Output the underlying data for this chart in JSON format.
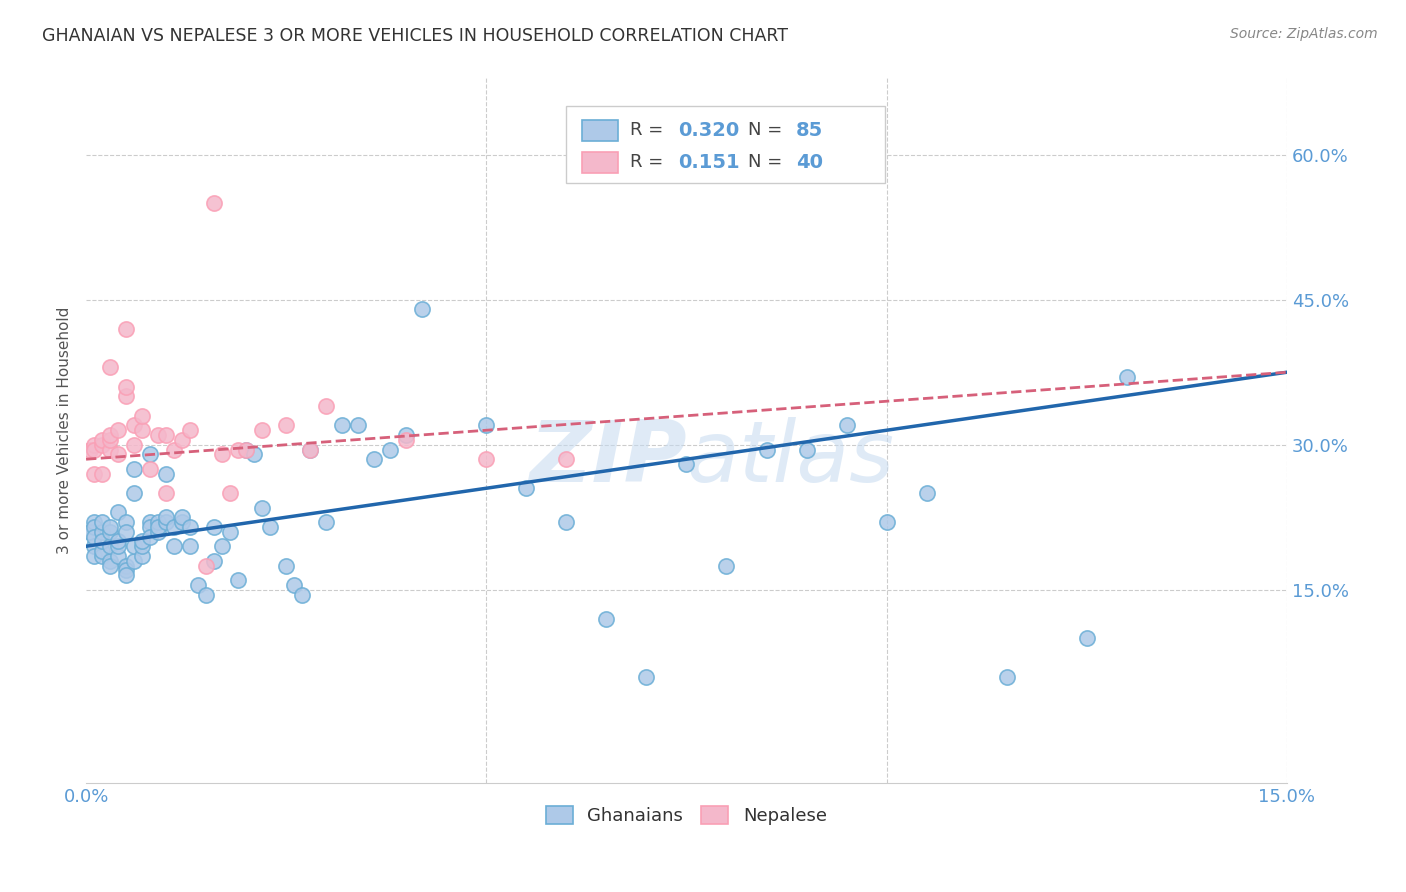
{
  "title": "GHANAIAN VS NEPALESE 3 OR MORE VEHICLES IN HOUSEHOLD CORRELATION CHART",
  "source": "Source: ZipAtlas.com",
  "ylabel": "3 or more Vehicles in Household",
  "yticks": [
    "60.0%",
    "45.0%",
    "30.0%",
    "15.0%"
  ],
  "ytick_vals": [
    0.6,
    0.45,
    0.3,
    0.15
  ],
  "xrange": [
    0.0,
    0.15
  ],
  "yrange": [
    -0.05,
    0.68
  ],
  "watermark": "ZIPatlas",
  "blue_color": "#6baed6",
  "pink_color": "#fa9fb5",
  "blue_line_color": "#2166ac",
  "pink_line_color": "#d6607a",
  "blue_scatter_color": "#aec9e8",
  "pink_scatter_color": "#f4b8cb",
  "background_color": "#ffffff",
  "grid_color": "#cccccc",
  "title_color": "#333333",
  "axis_label_color": "#5b9bd5",
  "r_val_color": "#5b9bd5",
  "blue_x": [
    0.0005,
    0.001,
    0.001,
    0.001,
    0.001,
    0.001,
    0.002,
    0.002,
    0.002,
    0.002,
    0.002,
    0.003,
    0.003,
    0.003,
    0.003,
    0.003,
    0.004,
    0.004,
    0.004,
    0.004,
    0.005,
    0.005,
    0.005,
    0.005,
    0.005,
    0.006,
    0.006,
    0.006,
    0.006,
    0.007,
    0.007,
    0.007,
    0.008,
    0.008,
    0.008,
    0.008,
    0.009,
    0.009,
    0.009,
    0.01,
    0.01,
    0.01,
    0.011,
    0.011,
    0.012,
    0.012,
    0.013,
    0.013,
    0.014,
    0.015,
    0.016,
    0.016,
    0.017,
    0.018,
    0.019,
    0.02,
    0.021,
    0.022,
    0.023,
    0.025,
    0.026,
    0.027,
    0.028,
    0.03,
    0.032,
    0.034,
    0.036,
    0.038,
    0.04,
    0.042,
    0.05,
    0.055,
    0.06,
    0.065,
    0.07,
    0.075,
    0.08,
    0.085,
    0.09,
    0.095,
    0.1,
    0.105,
    0.115,
    0.125,
    0.13
  ],
  "blue_y": [
    0.21,
    0.195,
    0.185,
    0.22,
    0.215,
    0.205,
    0.21,
    0.185,
    0.19,
    0.22,
    0.2,
    0.18,
    0.175,
    0.195,
    0.21,
    0.215,
    0.185,
    0.195,
    0.2,
    0.23,
    0.175,
    0.17,
    0.165,
    0.22,
    0.21,
    0.18,
    0.195,
    0.25,
    0.275,
    0.185,
    0.195,
    0.2,
    0.22,
    0.215,
    0.205,
    0.29,
    0.21,
    0.22,
    0.215,
    0.27,
    0.22,
    0.225,
    0.195,
    0.215,
    0.22,
    0.225,
    0.195,
    0.215,
    0.155,
    0.145,
    0.18,
    0.215,
    0.195,
    0.21,
    0.16,
    0.295,
    0.29,
    0.235,
    0.215,
    0.175,
    0.155,
    0.145,
    0.295,
    0.22,
    0.32,
    0.32,
    0.285,
    0.295,
    0.31,
    0.44,
    0.32,
    0.255,
    0.22,
    0.12,
    0.06,
    0.28,
    0.175,
    0.295,
    0.295,
    0.32,
    0.22,
    0.25,
    0.06,
    0.1,
    0.37
  ],
  "pink_x": [
    0.0005,
    0.001,
    0.001,
    0.001,
    0.002,
    0.002,
    0.002,
    0.003,
    0.003,
    0.003,
    0.003,
    0.004,
    0.004,
    0.005,
    0.005,
    0.005,
    0.006,
    0.006,
    0.007,
    0.007,
    0.008,
    0.009,
    0.01,
    0.01,
    0.011,
    0.012,
    0.013,
    0.015,
    0.016,
    0.017,
    0.018,
    0.019,
    0.02,
    0.022,
    0.025,
    0.028,
    0.03,
    0.04,
    0.05,
    0.06
  ],
  "pink_y": [
    0.295,
    0.27,
    0.3,
    0.295,
    0.27,
    0.3,
    0.305,
    0.295,
    0.305,
    0.38,
    0.31,
    0.29,
    0.315,
    0.35,
    0.36,
    0.42,
    0.3,
    0.32,
    0.315,
    0.33,
    0.275,
    0.31,
    0.31,
    0.25,
    0.295,
    0.305,
    0.315,
    0.175,
    0.55,
    0.29,
    0.25,
    0.295,
    0.295,
    0.315,
    0.32,
    0.295,
    0.34,
    0.305,
    0.285,
    0.285
  ]
}
